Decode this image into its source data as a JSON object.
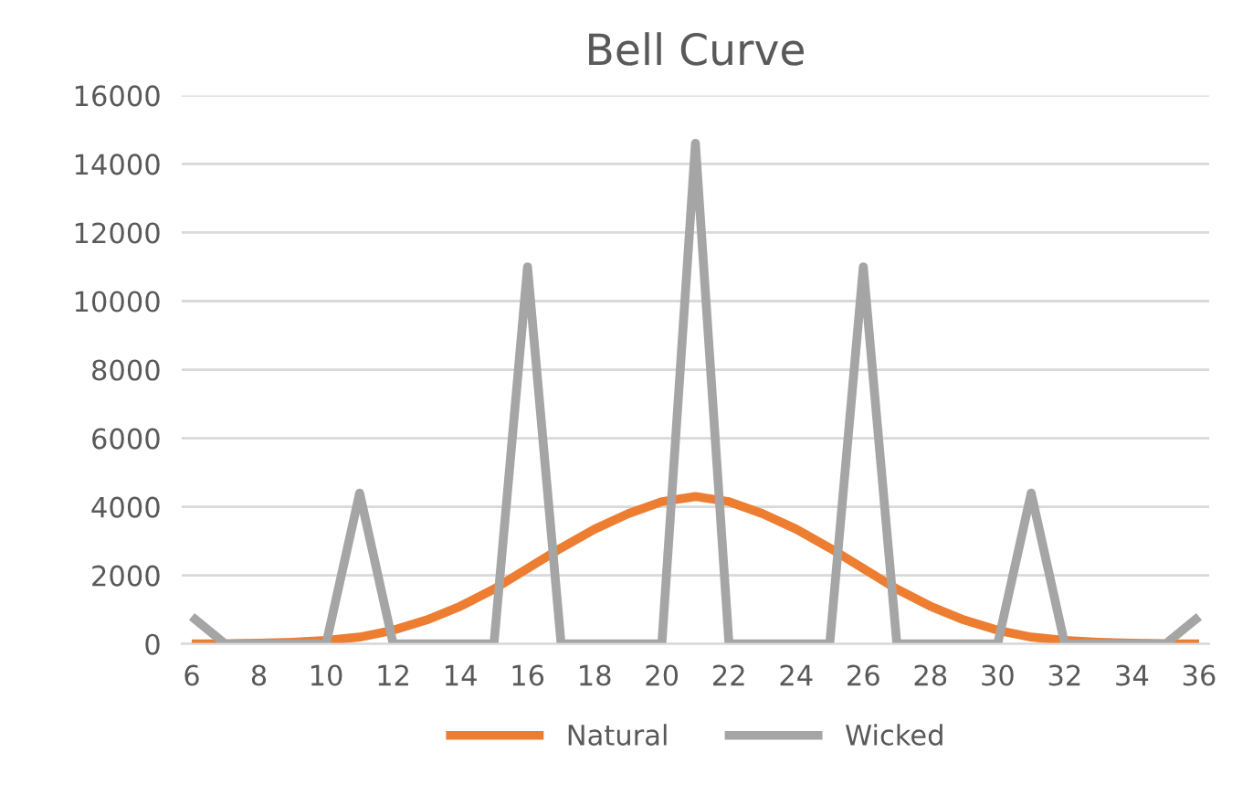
{
  "chart_data": {
    "type": "line",
    "title": "Bell Curve",
    "x": [
      6,
      7,
      8,
      9,
      10,
      11,
      12,
      13,
      14,
      15,
      16,
      17,
      18,
      19,
      20,
      21,
      22,
      23,
      24,
      25,
      26,
      27,
      28,
      29,
      30,
      31,
      32,
      33,
      34,
      35,
      36
    ],
    "xlim": [
      5.7,
      36.3
    ],
    "xticks": [
      6,
      8,
      10,
      12,
      14,
      16,
      18,
      20,
      22,
      24,
      26,
      28,
      30,
      32,
      34,
      36
    ],
    "ylim": [
      0,
      16000
    ],
    "yticks": [
      0,
      2000,
      4000,
      6000,
      8000,
      10000,
      12000,
      14000,
      16000
    ],
    "grid": "y",
    "legend": "bottom",
    "marker": "none",
    "line_style": "solid",
    "series": [
      {
        "name": "Natural",
        "color": "#ed7d31",
        "values": [
          0,
          5,
          20,
          50,
          100,
          200,
          400,
          700,
          1100,
          1600,
          2200,
          2800,
          3350,
          3800,
          4150,
          4300,
          4150,
          3800,
          3350,
          2800,
          2200,
          1600,
          1100,
          700,
          400,
          200,
          100,
          50,
          20,
          5,
          0
        ]
      },
      {
        "name": "Wicked",
        "color": "#a5a5a5",
        "values": [
          800,
          0,
          0,
          0,
          0,
          4400,
          0,
          0,
          0,
          0,
          11000,
          0,
          0,
          0,
          0,
          14600,
          0,
          0,
          0,
          0,
          11000,
          0,
          0,
          0,
          0,
          4400,
          0,
          0,
          0,
          0,
          800
        ]
      }
    ]
  }
}
